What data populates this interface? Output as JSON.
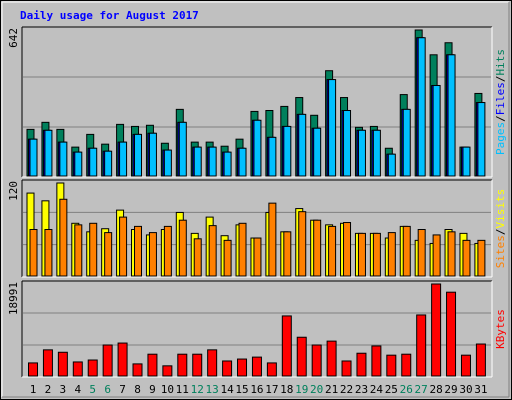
{
  "chart_data": [
    {
      "type": "bar",
      "title": "Daily usage for August 2017",
      "legend_separator": "/",
      "ylim": [
        0,
        642
      ],
      "yticks": [
        642
      ],
      "series": [
        {
          "name": "Hits",
          "color": "#00805c",
          "values": [
            205,
            236,
            205,
            127,
            183,
            140,
            227,
            218,
            223,
            144,
            293,
            149,
            149,
            131,
            162,
            284,
            288,
            306,
            345,
            267,
            463,
            345,
            214,
            218,
            122,
            358,
            642,
            533,
            586,
            127,
            363
          ]
        },
        {
          "name": "Files",
          "color": "#0000ff",
          "values": [
            162,
            201,
            149,
            105,
            122,
            109,
            149,
            183,
            188,
            114,
            236,
            127,
            127,
            105,
            122,
            245,
            170,
            218,
            271,
            210,
            424,
            288,
            201,
            201,
            96,
            293,
            608,
            398,
            533,
            127,
            323
          ]
        },
        {
          "name": "Pages",
          "color": "#00c0ff",
          "values": [
            162,
            201,
            149,
            105,
            122,
            109,
            149,
            183,
            188,
            114,
            236,
            127,
            127,
            105,
            122,
            245,
            170,
            218,
            271,
            210,
            424,
            288,
            201,
            201,
            96,
            293,
            608,
            398,
            533,
            127,
            323
          ]
        }
      ]
    },
    {
      "type": "bar",
      "legend_separator": "/",
      "ylim": [
        0,
        120
      ],
      "yticks": [
        120
      ],
      "series": [
        {
          "name": "Visits",
          "color": "#ffff00",
          "values": [
            107,
            97,
            120,
            68,
            57,
            61,
            85,
            60,
            53,
            60,
            82,
            55,
            76,
            52,
            66,
            49,
            82,
            57,
            87,
            72,
            66,
            68,
            55,
            55,
            49,
            64,
            46,
            42,
            60,
            55,
            42
          ]
        },
        {
          "name": "Sites",
          "color": "#ff8000",
          "values": [
            60,
            60,
            99,
            66,
            68,
            56,
            76,
            64,
            56,
            64,
            72,
            48,
            65,
            46,
            68,
            49,
            94,
            57,
            83,
            72,
            64,
            69,
            55,
            55,
            56,
            64,
            60,
            53,
            57,
            46,
            46
          ]
        }
      ]
    },
    {
      "type": "bar",
      "ylim": [
        0,
        18991
      ],
      "yticks": [
        18991
      ],
      "categories": [
        "1",
        "2",
        "3",
        "4",
        "5",
        "6",
        "7",
        "8",
        "9",
        "10",
        "11",
        "12",
        "13",
        "14",
        "15",
        "16",
        "17",
        "18",
        "19",
        "20",
        "21",
        "22",
        "23",
        "24",
        "25",
        "26",
        "27",
        "28",
        "29",
        "30",
        "31"
      ],
      "highlighted_categories": [
        "5",
        "6",
        "12",
        "13",
        "19",
        "20",
        "26",
        "27"
      ],
      "highlight_color": "#00805c",
      "series": [
        {
          "name": "KBytes",
          "color": "#ff0000",
          "values": [
            2700,
            5400,
            4900,
            2900,
            3300,
            6400,
            6800,
            2500,
            4500,
            2100,
            4500,
            4500,
            5400,
            3100,
            3500,
            3900,
            2700,
            12400,
            8000,
            6400,
            7200,
            3100,
            4700,
            6200,
            4300,
            4500,
            12600,
            18991,
            17300,
            4300,
            6600
          ]
        }
      ]
    }
  ]
}
